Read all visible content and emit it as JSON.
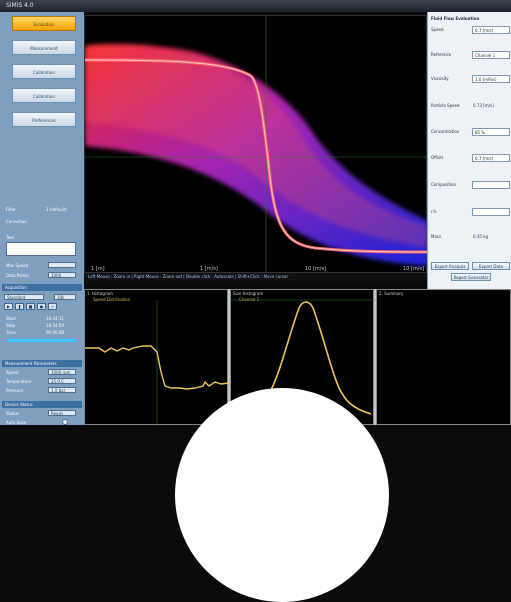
{
  "window": {
    "title": "SiMiS 4.0"
  },
  "nav": {
    "items": [
      {
        "label": "Evaluation",
        "active": true
      },
      {
        "label": "Measurement",
        "active": false
      },
      {
        "label": "Calibration",
        "active": false
      },
      {
        "label": "Calibration",
        "active": false
      },
      {
        "label": "Preferences",
        "active": false
      }
    ]
  },
  "left_panel": {
    "field1_label": "Filter",
    "field1_value": "1 (default)",
    "field2_label": "Correction",
    "text_label": "Text",
    "speed_label": "Max Speed",
    "speed_value": "",
    "points_label": "Data Points",
    "points_value": "1000",
    "acq_header": "Acquisition",
    "acq_mode": "Standard",
    "acq_value": "10k",
    "start_label": "Start",
    "stop_label": "Stop",
    "time_label": "Time",
    "start_value": "10:34:11",
    "stop_value": "10:34:59",
    "time_value": "00:00:48",
    "settings_header": "Measurement Parameters",
    "param1_label": "Speed",
    "param1_value": "1000 rpm",
    "param2_label": "Temperature",
    "param2_value": "25.0 C",
    "param3_label": "Pressure",
    "param3_value": "1.0 bar",
    "device_header": "Device Status",
    "device_label": "Status",
    "device_value": "Ready",
    "run_label": "Auto Save"
  },
  "main_plot": {
    "x_tick_left": "1 [m]",
    "x_tick_mid1": "1 [m/s]",
    "x_tick_mid2": "10 [m/s]",
    "x_tick_right": "10 [m/s]",
    "status_text": "Left Mouse : Zoom in  |  Right Mouse : Zoom out  |  Double click : Autoscale  |  Shift+Click : Move cursor"
  },
  "right_panel": {
    "title": "Fluid Flow Evaluation",
    "r1_label": "Speed",
    "r1_value": "0.7 [m/s]",
    "r2_label": "Reference",
    "r2_value": "Channel 1",
    "r3_label": "Viscosity",
    "r3_value": "1.0 [mPas]",
    "r4_label": "Particle Speed",
    "r4_value": "0.73 [m/s]",
    "r5_label": "Concentration",
    "r5_value": "85 %",
    "r6_label": "Offset",
    "r6_value": "0.7 [m/s]",
    "r7_label": "Composition",
    "r7_value": "",
    "r8_label": "r.h.",
    "r8_value": "",
    "r9_label": "Mass",
    "r9_value": "0.35 kg",
    "btn_left": "Export Analysis",
    "btn_right": "Export Data",
    "btn_bottom": "Report Generator"
  },
  "bottom_panels": [
    {
      "title": "1. Histogram",
      "subtitle": "Speed Distribution"
    },
    {
      "title": "Size Histogram",
      "subtitle": "Channel 1"
    },
    {
      "title": "2. Summary",
      "subtitle": ""
    }
  ],
  "colors": {
    "accent": "#f3a300",
    "nav_bg": "#7e9fbf",
    "curve": "#f1c55a"
  }
}
